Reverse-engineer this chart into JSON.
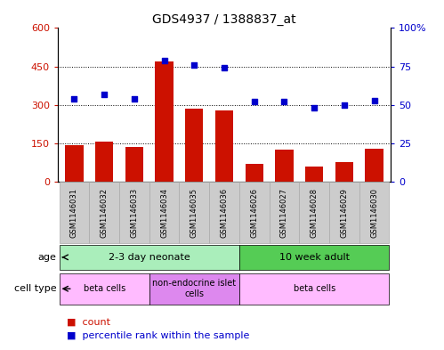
{
  "title": "GDS4937 / 1388837_at",
  "samples": [
    "GSM1146031",
    "GSM1146032",
    "GSM1146033",
    "GSM1146034",
    "GSM1146035",
    "GSM1146036",
    "GSM1146026",
    "GSM1146027",
    "GSM1146028",
    "GSM1146029",
    "GSM1146030"
  ],
  "counts": [
    145,
    158,
    138,
    470,
    285,
    278,
    70,
    125,
    60,
    78,
    128
  ],
  "percentiles": [
    54,
    57,
    54,
    79,
    76,
    74,
    52,
    52,
    48,
    50,
    53
  ],
  "bar_color": "#cc1100",
  "dot_color": "#0000cc",
  "ylim_left": [
    0,
    600
  ],
  "ylim_right": [
    0,
    100
  ],
  "yticks_left": [
    0,
    150,
    300,
    450,
    600
  ],
  "yticks_right": [
    0,
    25,
    50,
    75,
    100
  ],
  "ytick_labels_left": [
    "0",
    "150",
    "300",
    "450",
    "600"
  ],
  "ytick_labels_right": [
    "0",
    "25",
    "50",
    "75",
    "100%"
  ],
  "grid_lines": [
    150,
    300,
    450
  ],
  "age_groups": [
    {
      "label": "2-3 day neonate",
      "start": 0,
      "end": 5,
      "color": "#aaeebb"
    },
    {
      "label": "10 week adult",
      "start": 6,
      "end": 10,
      "color": "#55cc55"
    }
  ],
  "cell_type_groups": [
    {
      "label": "beta cells",
      "start": 0,
      "end": 2,
      "color": "#ffbbff"
    },
    {
      "label": "non-endocrine islet\ncells",
      "start": 3,
      "end": 5,
      "color": "#dd88ee"
    },
    {
      "label": "beta cells",
      "start": 6,
      "end": 10,
      "color": "#ffbbff"
    }
  ],
  "legend_items": [
    {
      "label": "count",
      "color": "#cc1100"
    },
    {
      "label": "percentile rank within the sample",
      "color": "#0000cc"
    }
  ],
  "tick_label_bg": "#cccccc",
  "tick_label_border": "#aaaaaa",
  "chart_bg": "#ffffff",
  "border_color": "#000000"
}
